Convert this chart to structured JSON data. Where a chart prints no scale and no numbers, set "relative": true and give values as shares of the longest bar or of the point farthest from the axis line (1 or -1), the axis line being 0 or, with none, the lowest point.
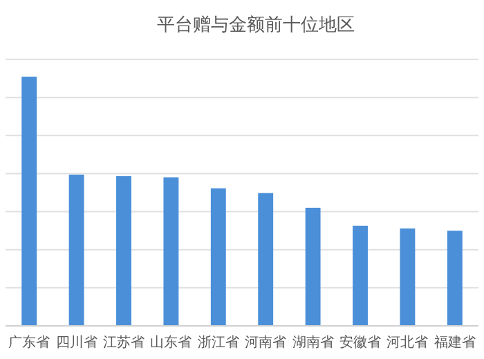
{
  "chart_data": {
    "type": "bar",
    "title": "平台赠与金额前十位地区",
    "categories": [
      "广东省",
      "四川省",
      "江苏省",
      "山东省",
      "浙江省",
      "河南省",
      "湖南省",
      "安徽省",
      "河北省",
      "福建省"
    ],
    "values": [
      1,
      0.607,
      0.601,
      0.596,
      0.552,
      0.533,
      0.474,
      0.402,
      0.391,
      0.382
    ],
    "color": "#4a8fd8",
    "relative": true,
    "grid": true
  }
}
